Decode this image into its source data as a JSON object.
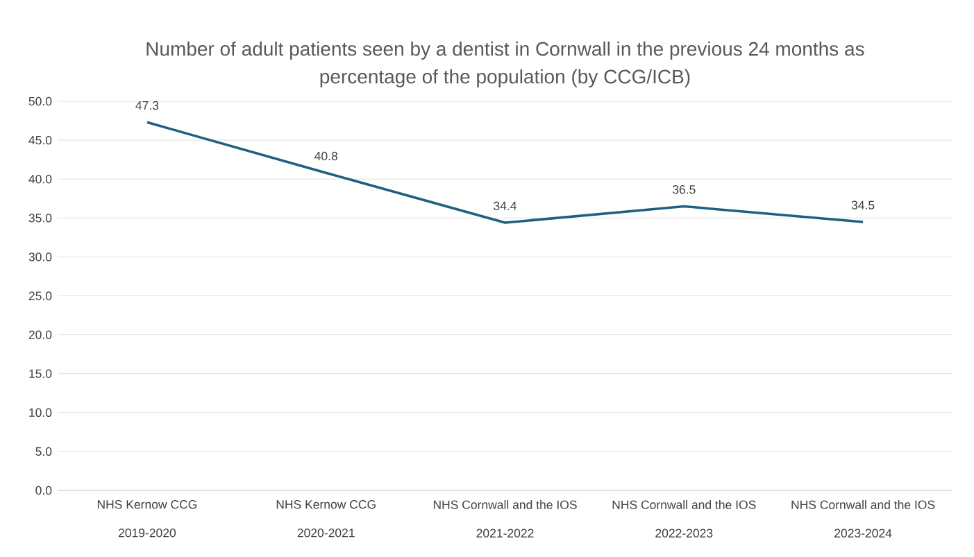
{
  "chart_data": {
    "type": "line",
    "title": "Number of adult patients seen by a dentist in Cornwall in the previous 24 months as percentage of the population (by CCG/ICB)",
    "categories": [
      "NHS Kernow CCG 2019-2020",
      "NHS Kernow CCG 2020-2021",
      "NHS Cornwall and the IOS 2021-2022",
      "NHS Cornwall and the IOS 2022-2023",
      "NHS Cornwall and the IOS 2023-2024"
    ],
    "series": [
      {
        "color": "#1f5f7f",
        "values": [
          47.3,
          40.8,
          34.4,
          36.5,
          34.5
        ]
      }
    ],
    "ylim": [
      0,
      50
    ],
    "yticks": [
      {
        "value": 0,
        "label": "0.0"
      },
      {
        "value": 5,
        "label": "5.0"
      },
      {
        "value": 10,
        "label": "10.0"
      },
      {
        "value": 15,
        "label": "15.0"
      },
      {
        "value": 20,
        "label": "20.0"
      },
      {
        "value": 25,
        "label": "25.0"
      },
      {
        "value": 30,
        "label": "30.0"
      },
      {
        "value": 35,
        "label": "35.0"
      },
      {
        "value": 40,
        "label": "40.0"
      },
      {
        "value": 45,
        "label": "45.0"
      },
      {
        "value": 50,
        "label": "50.0"
      }
    ],
    "grid": "y",
    "data_labels": true,
    "marker": "none",
    "line_style": "solid"
  }
}
